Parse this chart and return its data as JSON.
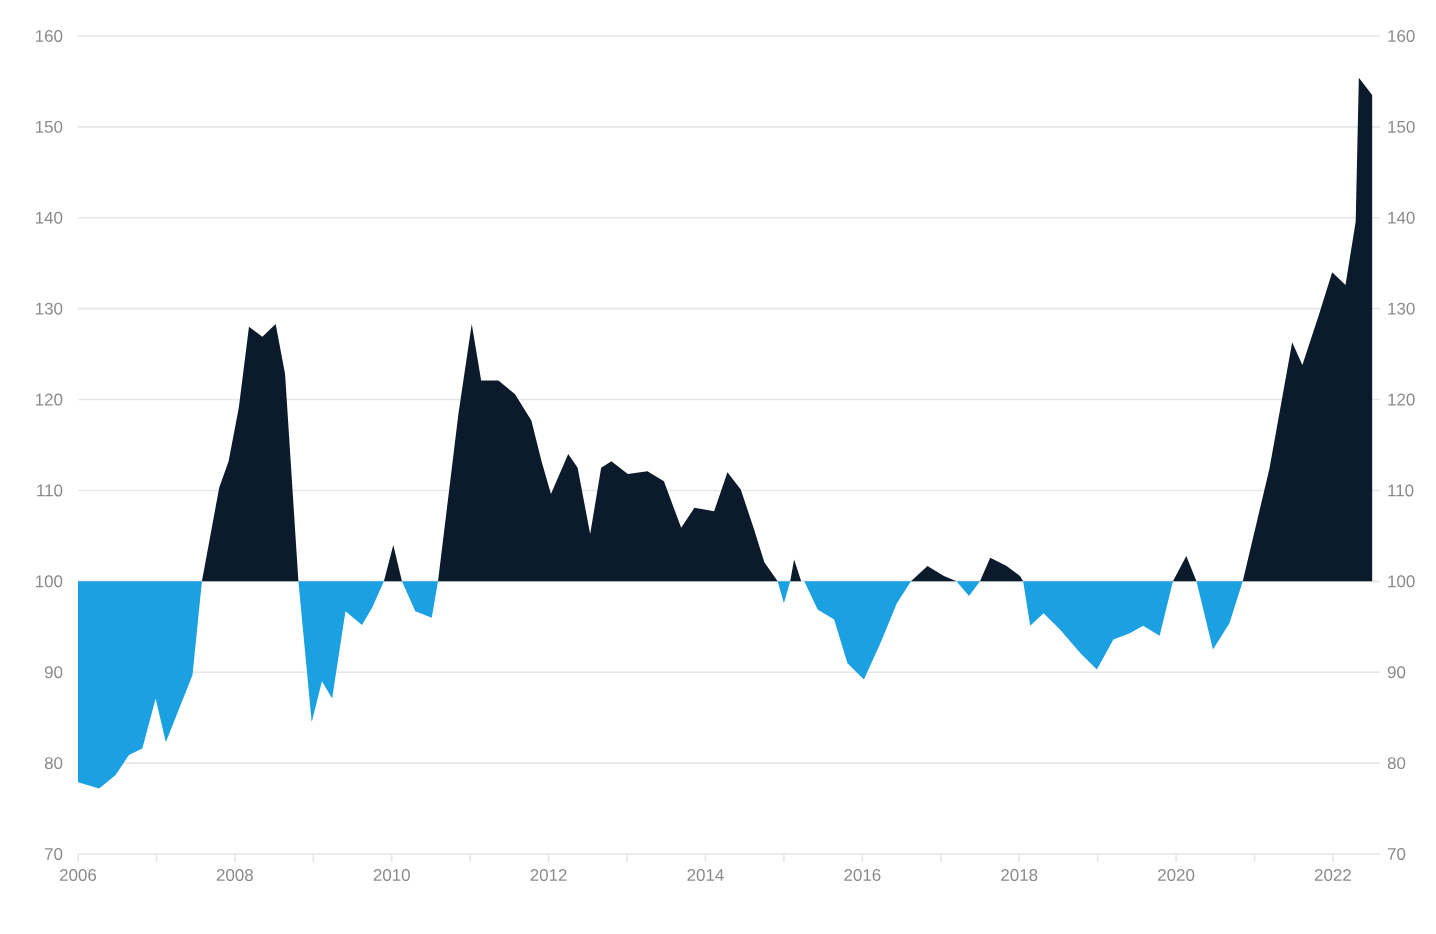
{
  "chart_data": {
    "type": "area",
    "xlim": [
      2006,
      2022.6
    ],
    "ylim": [
      70,
      160
    ],
    "y2lim": [
      70,
      160
    ],
    "xticks": [
      2006,
      {
        "value": 2007,
        "label": null
      },
      2008,
      {
        "value": 2009,
        "label": null
      },
      2010,
      {
        "value": 2011,
        "label": null
      },
      2012,
      {
        "value": 2013,
        "label": null
      },
      2014,
      {
        "value": 2015,
        "label": null
      },
      2016,
      {
        "value": 2017,
        "label": null
      },
      2018,
      {
        "value": 2019,
        "label": null
      },
      2020,
      {
        "value": 2021,
        "label": null
      },
      2022
    ],
    "yticks": [
      70,
      80,
      90,
      100,
      110,
      120,
      130,
      140,
      150,
      160
    ],
    "y2ticks": [
      70,
      80,
      90,
      100,
      110,
      120,
      130,
      140,
      150,
      160
    ],
    "grid": "y",
    "series": [
      {
        "color": "#0c1b2b",
        "x": [
          2007.58,
          2007.8,
          2007.92,
          2008.05,
          2008.18,
          2008.35,
          2008.52,
          2008.64,
          2008.81,
          2009.9,
          2010.02,
          2010.13,
          2010.59,
          2010.85,
          2011.02,
          2011.14,
          2011.36,
          2011.57,
          2011.78,
          2011.91,
          2012.03,
          2012.25,
          2012.37,
          2012.53,
          2012.67,
          2012.8,
          2013.01,
          2013.26,
          2013.47,
          2013.69,
          2013.86,
          2014.11,
          2014.28,
          2014.45,
          2014.62,
          2014.75,
          2014.92,
          2015.08,
          2015.13,
          2015.22,
          2016.62,
          2016.83,
          2017.04,
          2017.2,
          2017.5,
          2017.63,
          2017.84,
          2018.01,
          2018.05,
          2019.96,
          2020.13,
          2020.26,
          2020.85,
          2021.19,
          2021.48,
          2021.61,
          2021.82,
          2021.99,
          2022.16,
          2022.29,
          2022.33,
          2022.5,
          2022.5
        ],
        "values": [
          100,
          110.3,
          113.2,
          119.1,
          128,
          126.9,
          128.3,
          122.8,
          100,
          100,
          104,
          100,
          100,
          118.4,
          128.3,
          122.1,
          122.1,
          120.6,
          117.7,
          113.2,
          109.6,
          114,
          112.5,
          105.2,
          112.5,
          113.2,
          111.8,
          112.1,
          111,
          105.9,
          108.1,
          107.7,
          112,
          110.1,
          105.7,
          102.1,
          100,
          100,
          102.4,
          100,
          100,
          101.7,
          100.6,
          100,
          100,
          102.6,
          101.7,
          100.6,
          100,
          100,
          102.8,
          100,
          100,
          112.4,
          126.3,
          123.8,
          129.3,
          134,
          132.6,
          139.6,
          155.4,
          153.5,
          100
        ]
      },
      {
        "color": "#1ba1e2",
        "x": [
          2006.0,
          2006.0,
          2006.27,
          2006.48,
          2006.65,
          2006.82,
          2006.99,
          2007.12,
          2007.29,
          2007.46,
          2007.58,
          2008.81,
          2008.98,
          2009.11,
          2009.24,
          2009.41,
          2009.62,
          2009.75,
          2009.9,
          2010.13,
          2010.3,
          2010.51,
          2010.59,
          2014.92,
          2015.0,
          2015.08,
          2015.26,
          2015.43,
          2015.64,
          2015.81,
          2016.02,
          2016.23,
          2016.44,
          2016.62,
          2017.2,
          2017.36,
          2017.5,
          2018.05,
          2018.14,
          2018.31,
          2018.52,
          2018.78,
          2018.99,
          2019.2,
          2019.41,
          2019.58,
          2019.79,
          2019.96,
          2020.26,
          2020.47,
          2020.68,
          2020.85
        ],
        "values": [
          100,
          77.9,
          77.2,
          78.7,
          80.9,
          81.6,
          87.1,
          82.3,
          86,
          89.7,
          100,
          100,
          84.5,
          89,
          87.1,
          96.7,
          95.2,
          97.1,
          100,
          100,
          96.7,
          96,
          100,
          100,
          97.6,
          100,
          100,
          96.9,
          95.8,
          91,
          89.2,
          93.2,
          97.6,
          100,
          100,
          98.4,
          100,
          100,
          95.1,
          96.5,
          94.7,
          92.1,
          90.3,
          93.6,
          94.3,
          95.1,
          94,
          100,
          100,
          92.5,
          95.4,
          100
        ]
      }
    ]
  }
}
